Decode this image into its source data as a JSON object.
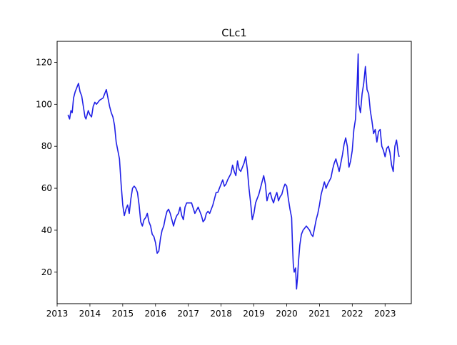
{
  "chart_data": {
    "type": "line",
    "title": "CLc1",
    "xlabel": "",
    "ylabel": "",
    "x_unit": "year",
    "xlim": [
      2013.0,
      2023.8
    ],
    "ylim": [
      5,
      130
    ],
    "xticks": [
      2013,
      2014,
      2015,
      2016,
      2017,
      2018,
      2019,
      2020,
      2021,
      2022,
      2023
    ],
    "xtick_labels": [
      "2013",
      "2014",
      "2015",
      "2016",
      "2017",
      "2018",
      "2019",
      "2020",
      "2021",
      "2022",
      "2023"
    ],
    "yticks": [
      20,
      40,
      60,
      80,
      100,
      120
    ],
    "ytick_labels": [
      "20",
      "40",
      "60",
      "80",
      "100",
      "120"
    ],
    "grid": false,
    "legend": "none",
    "series": [
      {
        "color": "#1f1fe6",
        "points": [
          [
            2013.33,
            95
          ],
          [
            2013.38,
            93
          ],
          [
            2013.42,
            97
          ],
          [
            2013.46,
            96
          ],
          [
            2013.5,
            103
          ],
          [
            2013.55,
            106
          ],
          [
            2013.6,
            108
          ],
          [
            2013.65,
            110
          ],
          [
            2013.7,
            106
          ],
          [
            2013.75,
            104
          ],
          [
            2013.8,
            99
          ],
          [
            2013.85,
            94
          ],
          [
            2013.88,
            93
          ],
          [
            2013.95,
            97
          ],
          [
            2014.0,
            95
          ],
          [
            2014.05,
            94
          ],
          [
            2014.1,
            99
          ],
          [
            2014.15,
            101
          ],
          [
            2014.2,
            100
          ],
          [
            2014.3,
            102
          ],
          [
            2014.4,
            103
          ],
          [
            2014.45,
            105
          ],
          [
            2014.5,
            107
          ],
          [
            2014.55,
            103
          ],
          [
            2014.6,
            99
          ],
          [
            2014.65,
            96
          ],
          [
            2014.7,
            94
          ],
          [
            2014.75,
            90
          ],
          [
            2014.8,
            82
          ],
          [
            2014.85,
            78
          ],
          [
            2014.9,
            74
          ],
          [
            2014.95,
            62
          ],
          [
            2015.0,
            52
          ],
          [
            2015.05,
            47
          ],
          [
            2015.1,
            50
          ],
          [
            2015.15,
            52
          ],
          [
            2015.2,
            48
          ],
          [
            2015.25,
            55
          ],
          [
            2015.3,
            60
          ],
          [
            2015.35,
            61
          ],
          [
            2015.4,
            60
          ],
          [
            2015.45,
            58
          ],
          [
            2015.5,
            52
          ],
          [
            2015.55,
            44
          ],
          [
            2015.6,
            42
          ],
          [
            2015.65,
            45
          ],
          [
            2015.7,
            46
          ],
          [
            2015.75,
            48
          ],
          [
            2015.8,
            44
          ],
          [
            2015.85,
            42
          ],
          [
            2015.9,
            38
          ],
          [
            2015.95,
            37
          ],
          [
            2016.0,
            34
          ],
          [
            2016.05,
            29
          ],
          [
            2016.1,
            30
          ],
          [
            2016.15,
            36
          ],
          [
            2016.2,
            40
          ],
          [
            2016.25,
            42
          ],
          [
            2016.3,
            46
          ],
          [
            2016.35,
            49
          ],
          [
            2016.4,
            50
          ],
          [
            2016.45,
            48
          ],
          [
            2016.5,
            45
          ],
          [
            2016.55,
            42
          ],
          [
            2016.6,
            45
          ],
          [
            2016.65,
            47
          ],
          [
            2016.7,
            48
          ],
          [
            2016.75,
            51
          ],
          [
            2016.8,
            47
          ],
          [
            2016.85,
            45
          ],
          [
            2016.9,
            51
          ],
          [
            2016.95,
            53
          ],
          [
            2017.0,
            53
          ],
          [
            2017.1,
            53
          ],
          [
            2017.2,
            48
          ],
          [
            2017.3,
            51
          ],
          [
            2017.35,
            49
          ],
          [
            2017.4,
            47
          ],
          [
            2017.45,
            44
          ],
          [
            2017.5,
            45
          ],
          [
            2017.55,
            48
          ],
          [
            2017.6,
            49
          ],
          [
            2017.65,
            48
          ],
          [
            2017.7,
            50
          ],
          [
            2017.75,
            52
          ],
          [
            2017.8,
            55
          ],
          [
            2017.85,
            58
          ],
          [
            2017.9,
            58
          ],
          [
            2017.95,
            60
          ],
          [
            2018.0,
            62
          ],
          [
            2018.05,
            64
          ],
          [
            2018.1,
            61
          ],
          [
            2018.15,
            62
          ],
          [
            2018.2,
            64
          ],
          [
            2018.3,
            67
          ],
          [
            2018.35,
            71
          ],
          [
            2018.4,
            68
          ],
          [
            2018.45,
            66
          ],
          [
            2018.5,
            73
          ],
          [
            2018.55,
            69
          ],
          [
            2018.6,
            68
          ],
          [
            2018.65,
            70
          ],
          [
            2018.7,
            72
          ],
          [
            2018.75,
            75
          ],
          [
            2018.8,
            69
          ],
          [
            2018.85,
            60
          ],
          [
            2018.9,
            53
          ],
          [
            2018.95,
            45
          ],
          [
            2019.0,
            48
          ],
          [
            2019.05,
            53
          ],
          [
            2019.1,
            55
          ],
          [
            2019.15,
            57
          ],
          [
            2019.2,
            60
          ],
          [
            2019.25,
            63
          ],
          [
            2019.3,
            66
          ],
          [
            2019.35,
            62
          ],
          [
            2019.4,
            54
          ],
          [
            2019.45,
            57
          ],
          [
            2019.5,
            58
          ],
          [
            2019.55,
            55
          ],
          [
            2019.6,
            53
          ],
          [
            2019.65,
            56
          ],
          [
            2019.7,
            58
          ],
          [
            2019.75,
            54
          ],
          [
            2019.8,
            56
          ],
          [
            2019.85,
            57
          ],
          [
            2019.9,
            60
          ],
          [
            2019.95,
            62
          ],
          [
            2020.0,
            61
          ],
          [
            2020.05,
            55
          ],
          [
            2020.1,
            50
          ],
          [
            2020.15,
            46
          ],
          [
            2020.18,
            32
          ],
          [
            2020.2,
            24
          ],
          [
            2020.23,
            20
          ],
          [
            2020.27,
            22
          ],
          [
            2020.3,
            12
          ],
          [
            2020.33,
            17
          ],
          [
            2020.36,
            25
          ],
          [
            2020.4,
            33
          ],
          [
            2020.45,
            38
          ],
          [
            2020.5,
            40
          ],
          [
            2020.6,
            42
          ],
          [
            2020.7,
            40
          ],
          [
            2020.75,
            38
          ],
          [
            2020.8,
            37
          ],
          [
            2020.85,
            41
          ],
          [
            2020.9,
            45
          ],
          [
            2020.95,
            48
          ],
          [
            2021.0,
            52
          ],
          [
            2021.05,
            57
          ],
          [
            2021.1,
            60
          ],
          [
            2021.15,
            63
          ],
          [
            2021.2,
            60
          ],
          [
            2021.25,
            62
          ],
          [
            2021.35,
            65
          ],
          [
            2021.4,
            69
          ],
          [
            2021.45,
            72
          ],
          [
            2021.5,
            74
          ],
          [
            2021.55,
            71
          ],
          [
            2021.6,
            68
          ],
          [
            2021.65,
            72
          ],
          [
            2021.7,
            76
          ],
          [
            2021.75,
            81
          ],
          [
            2021.8,
            84
          ],
          [
            2021.85,
            80
          ],
          [
            2021.9,
            70
          ],
          [
            2021.95,
            73
          ],
          [
            2022.0,
            78
          ],
          [
            2022.05,
            88
          ],
          [
            2022.1,
            93
          ],
          [
            2022.15,
            110
          ],
          [
            2022.18,
            124
          ],
          [
            2022.2,
            100
          ],
          [
            2022.25,
            96
          ],
          [
            2022.3,
            105
          ],
          [
            2022.35,
            110
          ],
          [
            2022.4,
            118
          ],
          [
            2022.45,
            107
          ],
          [
            2022.5,
            105
          ],
          [
            2022.55,
            97
          ],
          [
            2022.6,
            92
          ],
          [
            2022.65,
            86
          ],
          [
            2022.7,
            88
          ],
          [
            2022.75,
            82
          ],
          [
            2022.8,
            87
          ],
          [
            2022.85,
            88
          ],
          [
            2022.9,
            80
          ],
          [
            2022.95,
            78
          ],
          [
            2023.0,
            75
          ],
          [
            2023.05,
            79
          ],
          [
            2023.1,
            80
          ],
          [
            2023.15,
            77
          ],
          [
            2023.2,
            71
          ],
          [
            2023.25,
            68
          ],
          [
            2023.3,
            80
          ],
          [
            2023.35,
            83
          ],
          [
            2023.4,
            77
          ],
          [
            2023.43,
            75
          ]
        ]
      }
    ]
  }
}
